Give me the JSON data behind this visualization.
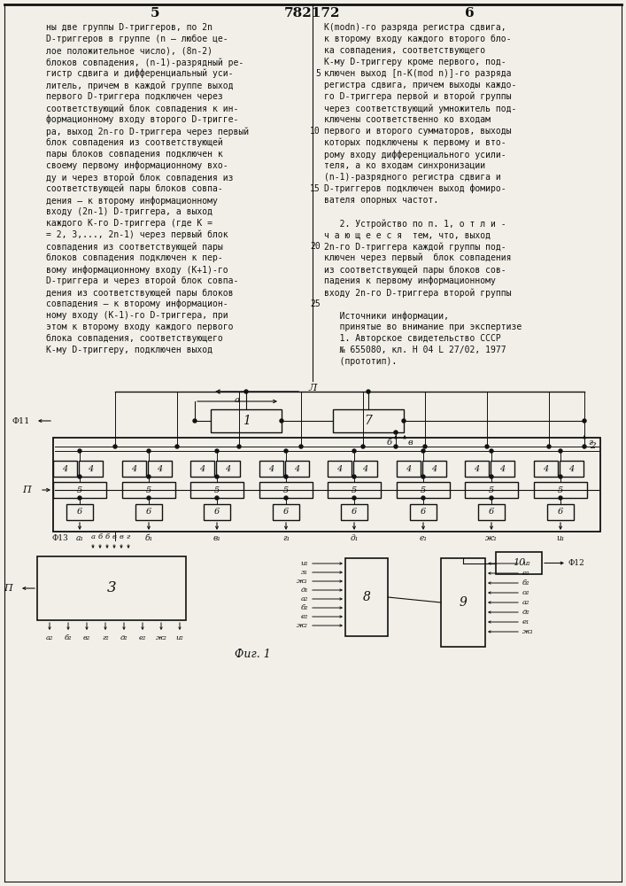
{
  "bg_color": "#f2efe8",
  "line_color": "#111111",
  "text_color": "#111111",
  "title": "782172",
  "page_left": "5",
  "page_right": "6",
  "fig_caption": "Фиг. 1",
  "line_numbers_right": [
    5,
    10,
    15,
    20,
    25
  ],
  "line_numbers_right_pos": [
    5,
    11,
    17,
    20,
    27
  ],
  "left_text": [
    "ны две группы D-триггеров, по 2n",
    "D-триггеров в группе (n – любое це-",
    "лое положительное число), (8n-2)",
    "блоков совпадения, (n-1)-разрядный ре-",
    "гистр сдвига и дифференциальный уси-",
    "литель, причем в каждой группе выход",
    "первого D-триггера подключен через",
    "соответствующий блок совпадения к ин-",
    "формационному входу второго D-тригге-",
    "ра, выход 2n-го D-триггера через первый",
    "блок совпадения из соответствующей",
    "пары блоков совпадения подключен к",
    "своему первому информационному вхо-",
    "ду и через второй блок совпадения из",
    "соответствующей пары блоков совпа-",
    "дения – к второму информационному",
    "входу (2n-1) D-триггера, а выход",
    "каждого К-го D-триггера (где К =",
    "= 2, 3,..., 2n-1) через первый блок",
    "совпадения из соответствующей пары",
    "блоков совпадения подключен к пер-",
    "вому информационному входу (К+1)-го",
    "D-триггера и через второй блок совпа-",
    "дения из соответствующей пары блоков",
    "совпадения – к второму информацион-",
    "ному входу (К-1)-го D-триггера, при",
    "этом к второму входу каждого первого",
    "блока совпадения, соответствующего",
    "К-му D-триггеру, подключен выход"
  ],
  "right_text": [
    "K(modn)-го разряда регистра сдвига,",
    "к второму входу каждого второго бло-",
    "ка совпадения, соответствующего",
    "К-му D-триггеру кроме первого, под-",
    "ключен выход [n-K(mod n)]-го разряда",
    "регистра сдвига, причем выходы каждо-",
    "го D-триггера первой и второй группы",
    "через соответствующий умножитель под-",
    "ключены соответственно ко входам",
    "первого и второго сумматоров, выходы",
    "которых подключены к первому и вто-",
    "рому входу дифференциального усили-",
    "теля, а ко входам синхронизации",
    "(n-1)-разрядного регистра сдвига и",
    "D-триггеров подключен выход фомиро-",
    "вателя опорных частот.",
    "",
    "   2. Устройство по п. 1, о т л и -",
    "ч а ю щ е е с я  тем, что, выход",
    "2n-го D-триггера каждой группы под-",
    "ключен через первый  блок совпадения",
    "из соответствующей пары блоков сов-",
    "падения к первому информационному",
    "входу 2n-го D-триггера второй группы",
    "",
    "   Источники информации,",
    "   принятые во внимание при экспертизе",
    "   1. Авторское свидетельство СССР",
    "   № 655080, кл. H 04 L 27/02, 1977",
    "   (прототип)."
  ]
}
